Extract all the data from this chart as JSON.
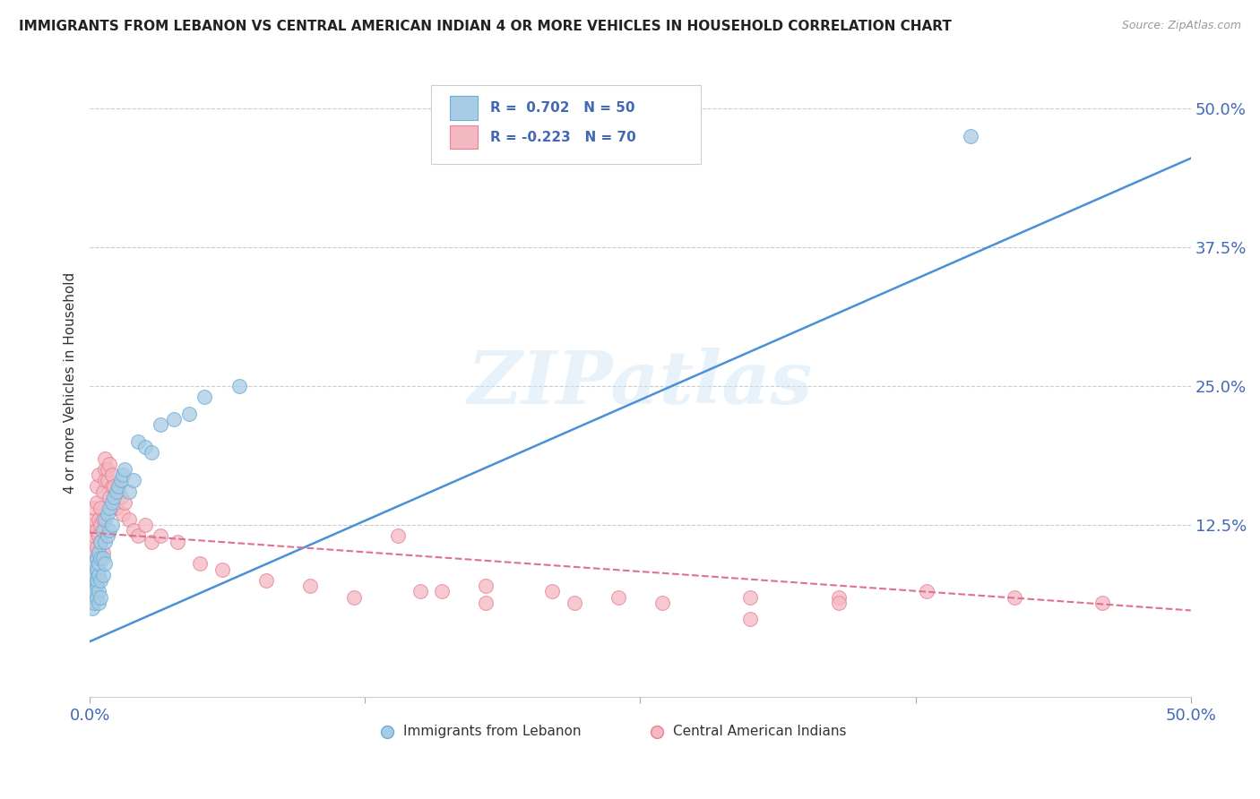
{
  "title": "IMMIGRANTS FROM LEBANON VS CENTRAL AMERICAN INDIAN 4 OR MORE VEHICLES IN HOUSEHOLD CORRELATION CHART",
  "source": "Source: ZipAtlas.com",
  "ylabel": "4 or more Vehicles in Household",
  "ytick_labels": [
    "50.0%",
    "37.5%",
    "25.0%",
    "12.5%"
  ],
  "ytick_values": [
    0.5,
    0.375,
    0.25,
    0.125
  ],
  "xmin": 0.0,
  "xmax": 0.5,
  "ymin": -0.03,
  "ymax": 0.535,
  "legend_r1": "R =  0.702",
  "legend_n1": "N = 50",
  "legend_r2": "R = -0.223",
  "legend_n2": "N = 70",
  "legend_label1": "Immigrants from Lebanon",
  "legend_label2": "Central American Indians",
  "color_blue": "#a8cce4",
  "color_blue_edge": "#6aadd5",
  "color_blue_line": "#4a90d9",
  "color_pink": "#f4b8c1",
  "color_pink_edge": "#e88098",
  "color_pink_line": "#e07090",
  "color_axis_labels": "#4169B8",
  "watermark": "ZIPatlas",
  "blue_line_x0": 0.0,
  "blue_line_x1": 0.5,
  "blue_line_y0": 0.02,
  "blue_line_y1": 0.455,
  "pink_line_x0": 0.0,
  "pink_line_x1": 0.5,
  "pink_line_y0": 0.118,
  "pink_line_y1": 0.048,
  "blue_scatter_x": [
    0.001,
    0.001,
    0.001,
    0.002,
    0.002,
    0.002,
    0.002,
    0.003,
    0.003,
    0.003,
    0.003,
    0.003,
    0.004,
    0.004,
    0.004,
    0.004,
    0.004,
    0.005,
    0.005,
    0.005,
    0.005,
    0.006,
    0.006,
    0.006,
    0.007,
    0.007,
    0.007,
    0.008,
    0.008,
    0.009,
    0.009,
    0.01,
    0.01,
    0.011,
    0.012,
    0.013,
    0.014,
    0.015,
    0.016,
    0.018,
    0.02,
    0.022,
    0.025,
    0.028,
    0.032,
    0.038,
    0.045,
    0.052,
    0.4,
    0.068
  ],
  "blue_scatter_y": [
    0.06,
    0.075,
    0.05,
    0.08,
    0.065,
    0.09,
    0.055,
    0.085,
    0.07,
    0.095,
    0.06,
    0.075,
    0.1,
    0.08,
    0.065,
    0.09,
    0.055,
    0.11,
    0.095,
    0.075,
    0.06,
    0.12,
    0.095,
    0.08,
    0.13,
    0.11,
    0.09,
    0.135,
    0.115,
    0.14,
    0.12,
    0.145,
    0.125,
    0.15,
    0.155,
    0.16,
    0.165,
    0.17,
    0.175,
    0.155,
    0.165,
    0.2,
    0.195,
    0.19,
    0.215,
    0.22,
    0.225,
    0.24,
    0.475,
    0.25
  ],
  "pink_scatter_x": [
    0.001,
    0.001,
    0.001,
    0.001,
    0.002,
    0.002,
    0.002,
    0.002,
    0.002,
    0.003,
    0.003,
    0.003,
    0.003,
    0.003,
    0.003,
    0.004,
    0.004,
    0.004,
    0.004,
    0.004,
    0.005,
    0.005,
    0.005,
    0.005,
    0.006,
    0.006,
    0.006,
    0.007,
    0.007,
    0.007,
    0.008,
    0.008,
    0.009,
    0.009,
    0.01,
    0.01,
    0.011,
    0.012,
    0.013,
    0.014,
    0.015,
    0.016,
    0.018,
    0.02,
    0.022,
    0.025,
    0.028,
    0.032,
    0.04,
    0.05,
    0.06,
    0.08,
    0.1,
    0.12,
    0.15,
    0.18,
    0.22,
    0.26,
    0.3,
    0.34,
    0.38,
    0.42,
    0.46,
    0.3,
    0.34,
    0.21,
    0.24,
    0.18,
    0.16,
    0.14
  ],
  "pink_scatter_y": [
    0.11,
    0.095,
    0.125,
    0.08,
    0.13,
    0.1,
    0.115,
    0.085,
    0.14,
    0.12,
    0.095,
    0.145,
    0.105,
    0.075,
    0.16,
    0.13,
    0.1,
    0.115,
    0.085,
    0.17,
    0.14,
    0.11,
    0.095,
    0.125,
    0.155,
    0.1,
    0.13,
    0.175,
    0.165,
    0.185,
    0.165,
    0.175,
    0.18,
    0.15,
    0.16,
    0.17,
    0.16,
    0.14,
    0.155,
    0.15,
    0.135,
    0.145,
    0.13,
    0.12,
    0.115,
    0.125,
    0.11,
    0.115,
    0.11,
    0.09,
    0.085,
    0.075,
    0.07,
    0.06,
    0.065,
    0.055,
    0.055,
    0.055,
    0.06,
    0.06,
    0.065,
    0.06,
    0.055,
    0.04,
    0.055,
    0.065,
    0.06,
    0.07,
    0.065,
    0.115
  ]
}
